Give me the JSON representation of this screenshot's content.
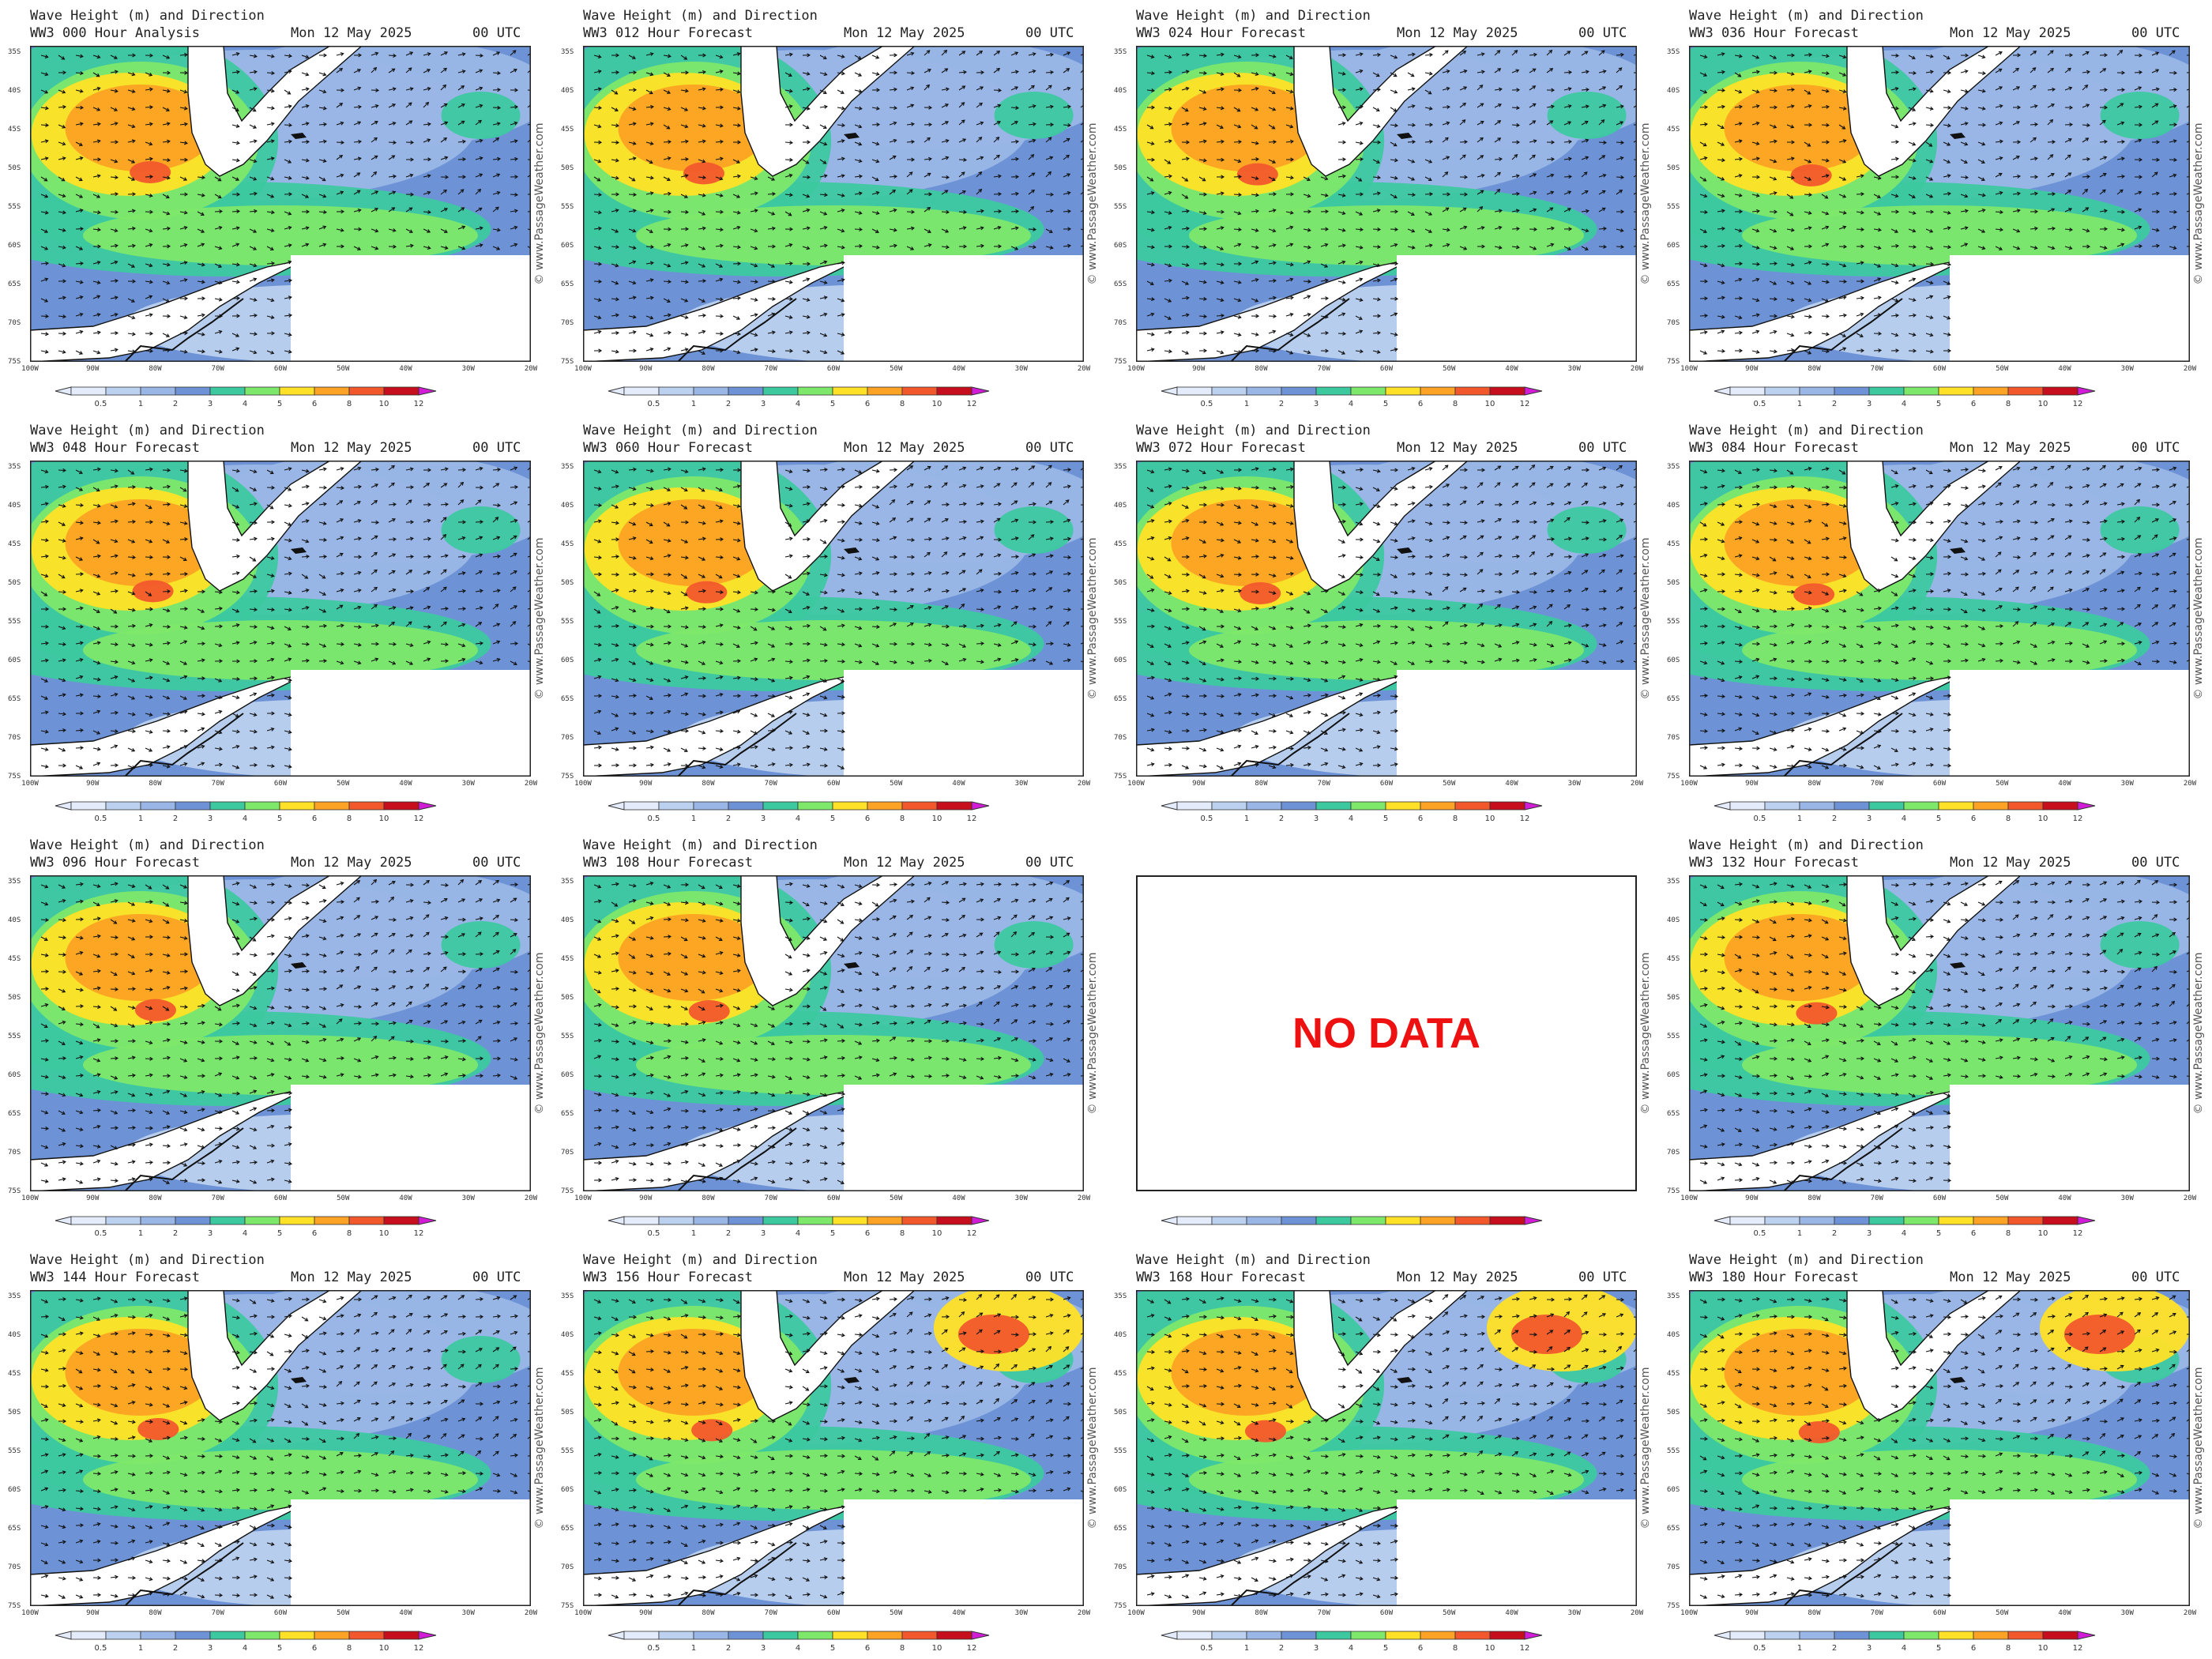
{
  "title": "Wave Height (m) and Direction",
  "date": "Mon 12 May 2025",
  "utc": "00 UTC",
  "watermark": "© www.PassageWeather.com",
  "lat_labels": [
    "35S",
    "40S",
    "45S",
    "50S",
    "55S",
    "60S",
    "65S",
    "70S",
    "75S"
  ],
  "lon_labels": [
    "100W",
    "90W",
    "80W",
    "70W",
    "60W",
    "50W",
    "40W",
    "30W",
    "20W"
  ],
  "colorbar": {
    "labels": [
      "0.5",
      "1",
      "2",
      "3",
      "4",
      "5",
      "6",
      "8",
      "10",
      "12"
    ],
    "colors": [
      "#e4ebfb",
      "#bcd0ef",
      "#9ab6e6",
      "#6d93d6",
      "#3dc9a0",
      "#7ee86a",
      "#ffe227",
      "#fca224",
      "#f2582c",
      "#c70e1c",
      "#d21cd8"
    ]
  },
  "land_color": "#ffffff",
  "no_data_text": "NO DATA",
  "panels": [
    {
      "label": "WW3 000 Hour Analysis"
    },
    {
      "label": "WW3 012 Hour Forecast"
    },
    {
      "label": "WW3 024 Hour Forecast"
    },
    {
      "label": "WW3 036 Hour Forecast"
    },
    {
      "label": "WW3 048 Hour Forecast"
    },
    {
      "label": "WW3 060 Hour Forecast"
    },
    {
      "label": "WW3 072 Hour Forecast"
    },
    {
      "label": "WW3 084 Hour Forecast"
    },
    {
      "label": "WW3 096 Hour Forecast"
    },
    {
      "label": "WW3 108 Hour Forecast"
    },
    {
      "label": "",
      "no_data": true
    },
    {
      "label": "WW3 132 Hour Forecast"
    },
    {
      "label": "WW3 144 Hour Forecast"
    },
    {
      "label": "WW3 156 Hour Forecast"
    },
    {
      "label": "WW3 168 Hour Forecast"
    },
    {
      "label": "WW3 180 Hour Forecast"
    }
  ]
}
